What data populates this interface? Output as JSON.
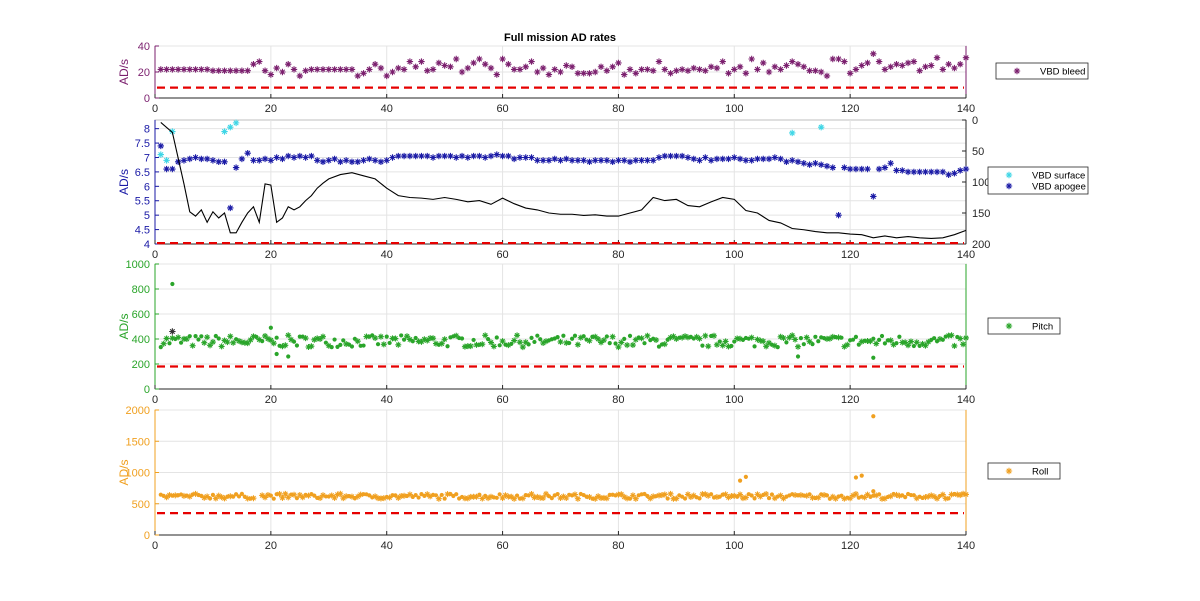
{
  "figure_title": "Full mission AD rates",
  "chart_data": [
    {
      "id": "bleed",
      "type": "scatter",
      "ylabel": "AD/s",
      "xlim": [
        0,
        140
      ],
      "ylim": [
        0,
        40
      ],
      "xticks": [
        0,
        20,
        40,
        60,
        80,
        100,
        120,
        140
      ],
      "yticks": [
        0,
        20,
        40
      ],
      "axis_color": "#7b1f6e",
      "grid": true,
      "legend_position": "right",
      "threshold": {
        "y": 8,
        "color": "#e60000",
        "style": "dashed"
      },
      "series": [
        {
          "name": "VBD bleed",
          "marker": "asterisk",
          "color": "#7b1f6e",
          "x": [
            1,
            2,
            3,
            4,
            5,
            6,
            7,
            8,
            9,
            10,
            11,
            12,
            13,
            14,
            15,
            16,
            17,
            18,
            19,
            20,
            21,
            22,
            23,
            24,
            25,
            26,
            27,
            28,
            29,
            30,
            31,
            32,
            33,
            34,
            35,
            36,
            37,
            38,
            39,
            40,
            41,
            42,
            43,
            44,
            45,
            46,
            47,
            48,
            49,
            50,
            51,
            52,
            53,
            54,
            55,
            56,
            57,
            58,
            59,
            60,
            61,
            62,
            63,
            64,
            65,
            66,
            67,
            68,
            69,
            70,
            71,
            72,
            73,
            74,
            75,
            76,
            77,
            78,
            79,
            80,
            81,
            82,
            83,
            84,
            85,
            86,
            87,
            88,
            89,
            90,
            91,
            92,
            93,
            94,
            95,
            96,
            97,
            98,
            99,
            100,
            101,
            102,
            103,
            104,
            105,
            106,
            107,
            108,
            109,
            110,
            111,
            112,
            113,
            114,
            115,
            116,
            117,
            118,
            119,
            120,
            121,
            122,
            123,
            124,
            125,
            126,
            127,
            128,
            129,
            130,
            131,
            132,
            133,
            134,
            135,
            136,
            137,
            138,
            139,
            140
          ],
          "y": [
            22,
            22,
            22,
            22,
            22,
            22,
            22,
            22,
            22,
            21,
            21,
            21,
            21,
            21,
            21,
            21,
            26,
            28,
            21,
            18,
            23,
            20,
            26,
            22,
            17,
            21,
            22,
            22,
            22,
            22,
            22,
            22,
            22,
            22,
            17,
            19,
            22,
            26,
            23,
            17,
            20,
            23,
            22,
            28,
            24,
            28,
            21,
            22,
            27,
            25,
            24,
            30,
            20,
            23,
            27,
            30,
            26,
            23,
            18,
            30,
            26,
            22,
            22,
            24,
            28,
            20,
            23,
            18,
            22,
            20,
            25,
            24,
            19,
            19,
            19,
            20,
            24,
            21,
            24,
            27,
            18,
            22,
            19,
            22,
            22,
            21,
            28,
            22,
            19,
            21,
            22,
            21,
            23,
            22,
            21,
            24,
            23,
            28,
            19,
            22,
            24,
            19,
            30,
            22,
            27,
            20,
            24,
            22,
            25,
            28,
            26,
            24,
            21,
            21,
            20,
            17,
            30,
            30,
            28,
            19,
            22,
            25,
            27,
            34,
            28,
            22,
            24,
            26,
            25,
            27,
            28,
            21,
            24,
            25,
            31,
            22,
            26,
            23,
            26,
            31
          ]
        }
      ]
    },
    {
      "id": "vbd",
      "type": "scatter",
      "ylabel": "AD/s",
      "xlim": [
        0,
        140
      ],
      "ylim": [
        4,
        8.3
      ],
      "xticks": [
        0,
        20,
        40,
        60,
        80,
        100,
        120,
        140
      ],
      "yticks": [
        4,
        4.5,
        5,
        5.5,
        6,
        6.5,
        7,
        7.5,
        8
      ],
      "ytick_labels": [
        "4",
        "4.5",
        "5",
        "5.5",
        "6",
        "6.5",
        "7",
        "7.5",
        "8"
      ],
      "y2lim": [
        0,
        200
      ],
      "y2ticks": [
        0,
        50,
        100,
        150,
        200
      ],
      "y2_reversed": true,
      "axis_color": "#1a1aa6",
      "grid": true,
      "legend_position": "right",
      "threshold": {
        "y": 4.03,
        "color": "#e60000",
        "style": "dashed"
      },
      "series": [
        {
          "name": "VBD surface",
          "marker": "asterisk",
          "color": "#3fd6e6",
          "x": [
            1,
            2,
            3,
            12,
            13,
            14,
            110,
            115
          ],
          "y": [
            7.1,
            6.9,
            7.9,
            7.9,
            8.05,
            8.2,
            7.85,
            8.05
          ]
        },
        {
          "name": "VBD apogee",
          "marker": "asterisk",
          "color": "#1a1aa6",
          "x": [
            1,
            2,
            3,
            4,
            5,
            6,
            7,
            8,
            9,
            10,
            11,
            12,
            13,
            14,
            15,
            16,
            17,
            18,
            19,
            20,
            21,
            22,
            23,
            24,
            25,
            26,
            27,
            28,
            29,
            30,
            31,
            32,
            33,
            34,
            35,
            36,
            37,
            38,
            39,
            40,
            41,
            42,
            43,
            44,
            45,
            46,
            47,
            48,
            49,
            50,
            51,
            52,
            53,
            54,
            55,
            56,
            57,
            58,
            59,
            60,
            61,
            62,
            63,
            64,
            65,
            66,
            67,
            68,
            69,
            70,
            71,
            72,
            73,
            74,
            75,
            76,
            77,
            78,
            79,
            80,
            81,
            82,
            83,
            84,
            85,
            86,
            87,
            88,
            89,
            90,
            91,
            92,
            93,
            94,
            95,
            96,
            97,
            98,
            99,
            100,
            101,
            102,
            103,
            104,
            105,
            106,
            107,
            108,
            109,
            110,
            111,
            112,
            113,
            114,
            115,
            116,
            117,
            118,
            119,
            120,
            121,
            122,
            123,
            124,
            125,
            126,
            127,
            128,
            129,
            130,
            131,
            132,
            133,
            134,
            135,
            136,
            137,
            138,
            139,
            140
          ],
          "y": [
            7.4,
            6.6,
            6.6,
            6.85,
            6.9,
            6.95,
            7.0,
            6.95,
            6.95,
            6.9,
            6.85,
            6.85,
            5.25,
            6.65,
            6.95,
            7.15,
            6.9,
            6.9,
            6.95,
            6.9,
            7.0,
            6.95,
            7.05,
            7.0,
            7.05,
            7.0,
            7.05,
            6.9,
            6.85,
            6.9,
            6.95,
            6.85,
            6.9,
            6.85,
            6.85,
            6.9,
            6.95,
            6.9,
            6.85,
            6.9,
            7.0,
            7.05,
            7.05,
            7.05,
            7.05,
            7.05,
            7.05,
            7.0,
            7.05,
            7.05,
            7.05,
            7.0,
            7.05,
            7.0,
            7.05,
            7.05,
            7.0,
            7.05,
            7.1,
            7.05,
            7.05,
            6.95,
            7.0,
            7.0,
            7.0,
            6.9,
            6.9,
            6.9,
            6.95,
            6.9,
            6.95,
            6.9,
            6.9,
            6.9,
            6.85,
            6.9,
            6.9,
            6.9,
            6.85,
            6.9,
            6.9,
            6.85,
            6.9,
            6.9,
            6.9,
            6.9,
            7.0,
            7.05,
            7.05,
            7.05,
            7.05,
            7.0,
            6.95,
            6.9,
            7.0,
            6.9,
            6.95,
            6.95,
            6.95,
            7.0,
            6.95,
            6.9,
            6.9,
            6.95,
            6.95,
            6.95,
            7.0,
            6.95,
            6.85,
            6.9,
            6.85,
            6.8,
            6.75,
            6.8,
            6.75,
            6.7,
            6.65,
            5.0,
            6.65,
            6.6,
            6.6,
            6.6,
            6.6,
            5.65,
            6.6,
            6.65,
            6.8,
            6.55,
            6.55,
            6.5,
            6.5,
            6.5,
            6.5,
            6.5,
            6.5,
            6.5,
            6.4,
            6.45,
            6.55,
            6.6
          ]
        },
        {
          "name": "",
          "marker": "line",
          "color": "#000000",
          "axis": "right",
          "x": [
            1,
            3,
            5,
            6,
            7,
            8,
            9,
            10,
            11,
            12,
            13,
            14,
            15,
            16,
            17,
            18,
            19,
            20,
            21,
            22,
            23,
            24,
            25,
            26,
            27,
            28,
            29,
            30,
            32,
            34,
            36,
            38,
            40,
            42,
            44,
            46,
            48,
            50,
            52,
            54,
            56,
            58,
            60,
            62,
            64,
            66,
            68,
            70,
            72,
            74,
            76,
            78,
            80,
            82,
            84,
            86,
            88,
            90,
            92,
            94,
            96,
            98,
            100,
            102,
            104,
            106,
            108,
            110,
            112,
            114,
            116,
            118,
            120,
            122,
            124,
            126,
            128,
            130,
            132,
            134,
            136,
            138,
            140
          ],
          "y": [
            4,
            20,
            103,
            148,
            155,
            145,
            165,
            148,
            158,
            150,
            182,
            182,
            165,
            150,
            140,
            165,
            103,
            105,
            165,
            158,
            140,
            145,
            140,
            130,
            122,
            110,
            102,
            95,
            88,
            85,
            90,
            95,
            110,
            122,
            125,
            126,
            128,
            125,
            128,
            132,
            130,
            136,
            126,
            135,
            142,
            145,
            150,
            152,
            152,
            154,
            153,
            155,
            155,
            150,
            145,
            125,
            130,
            128,
            138,
            140,
            132,
            125,
            128,
            146,
            150,
            162,
            166,
            175,
            177,
            180,
            182,
            182,
            184,
            185,
            190,
            187,
            190,
            188,
            190,
            191,
            190,
            185,
            178
          ]
        }
      ]
    },
    {
      "id": "pitch",
      "type": "scatter",
      "ylabel": "AD/s",
      "xlim": [
        0,
        140
      ],
      "ylim": [
        0,
        1000
      ],
      "xticks": [
        0,
        20,
        40,
        60,
        80,
        100,
        120,
        140
      ],
      "yticks": [
        0,
        200,
        400,
        600,
        800,
        1000
      ],
      "axis_color": "#2aa52a",
      "grid": true,
      "legend_position": "right",
      "threshold": {
        "y": 180,
        "color": "#e60000",
        "style": "dashed"
      },
      "series": [
        {
          "name": "Pitch",
          "marker": "asterisk",
          "color": "#2aa52a",
          "band": [
            335,
            430
          ],
          "outliers_x": [
            3,
            20,
            21,
            23,
            111,
            124
          ],
          "outliers_y": [
            840,
            490,
            280,
            260,
            260,
            250
          ]
        }
      ]
    },
    {
      "id": "roll",
      "type": "scatter",
      "ylabel": "AD/s",
      "xlim": [
        0,
        140
      ],
      "ylim": [
        0,
        2000
      ],
      "xticks": [
        0,
        20,
        40,
        60,
        80,
        100,
        120,
        140
      ],
      "yticks": [
        0,
        500,
        1000,
        1500,
        2000
      ],
      "axis_color": "#f0a020",
      "grid": true,
      "legend_position": "right",
      "threshold": {
        "y": 350,
        "color": "#e60000",
        "style": "dashed"
      },
      "series": [
        {
          "name": "Roll",
          "marker": "asterisk",
          "color": "#f0a020",
          "band": [
            580,
            660
          ],
          "outliers_x": [
            101,
            102,
            121,
            122,
            124,
            124
          ],
          "outliers_y": [
            870,
            930,
            920,
            950,
            1900,
            700
          ]
        }
      ]
    }
  ]
}
